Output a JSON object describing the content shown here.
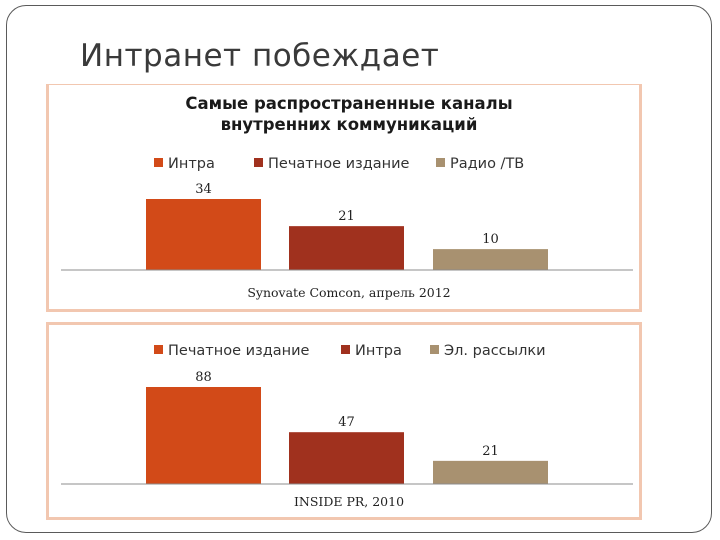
{
  "slide": {
    "title": "Интранет побеждает"
  },
  "colors": {
    "series1": "#D24A18",
    "series2": "#A0311E",
    "series3": "#A89170",
    "frame": "#F2C7B0"
  },
  "chart_data": [
    {
      "type": "bar",
      "title_lines": [
        "Самые распространенные каналы",
        "внутренних коммуникаций"
      ],
      "categories": [
        "Интра",
        "Печатное издание",
        "Радио /ТВ"
      ],
      "values": [
        34,
        21,
        10
      ],
      "ylim": [
        0,
        34
      ],
      "legend_position": "top",
      "source": "Synovate Comcon, апрель 2012"
    },
    {
      "type": "bar",
      "title_lines": [],
      "categories": [
        "Печатное издание",
        "Интра",
        "Эл. рассылки"
      ],
      "values": [
        88,
        47,
        21
      ],
      "ylim": [
        0,
        88
      ],
      "legend_position": "top",
      "source": "INSIDE PR, 2010"
    }
  ]
}
